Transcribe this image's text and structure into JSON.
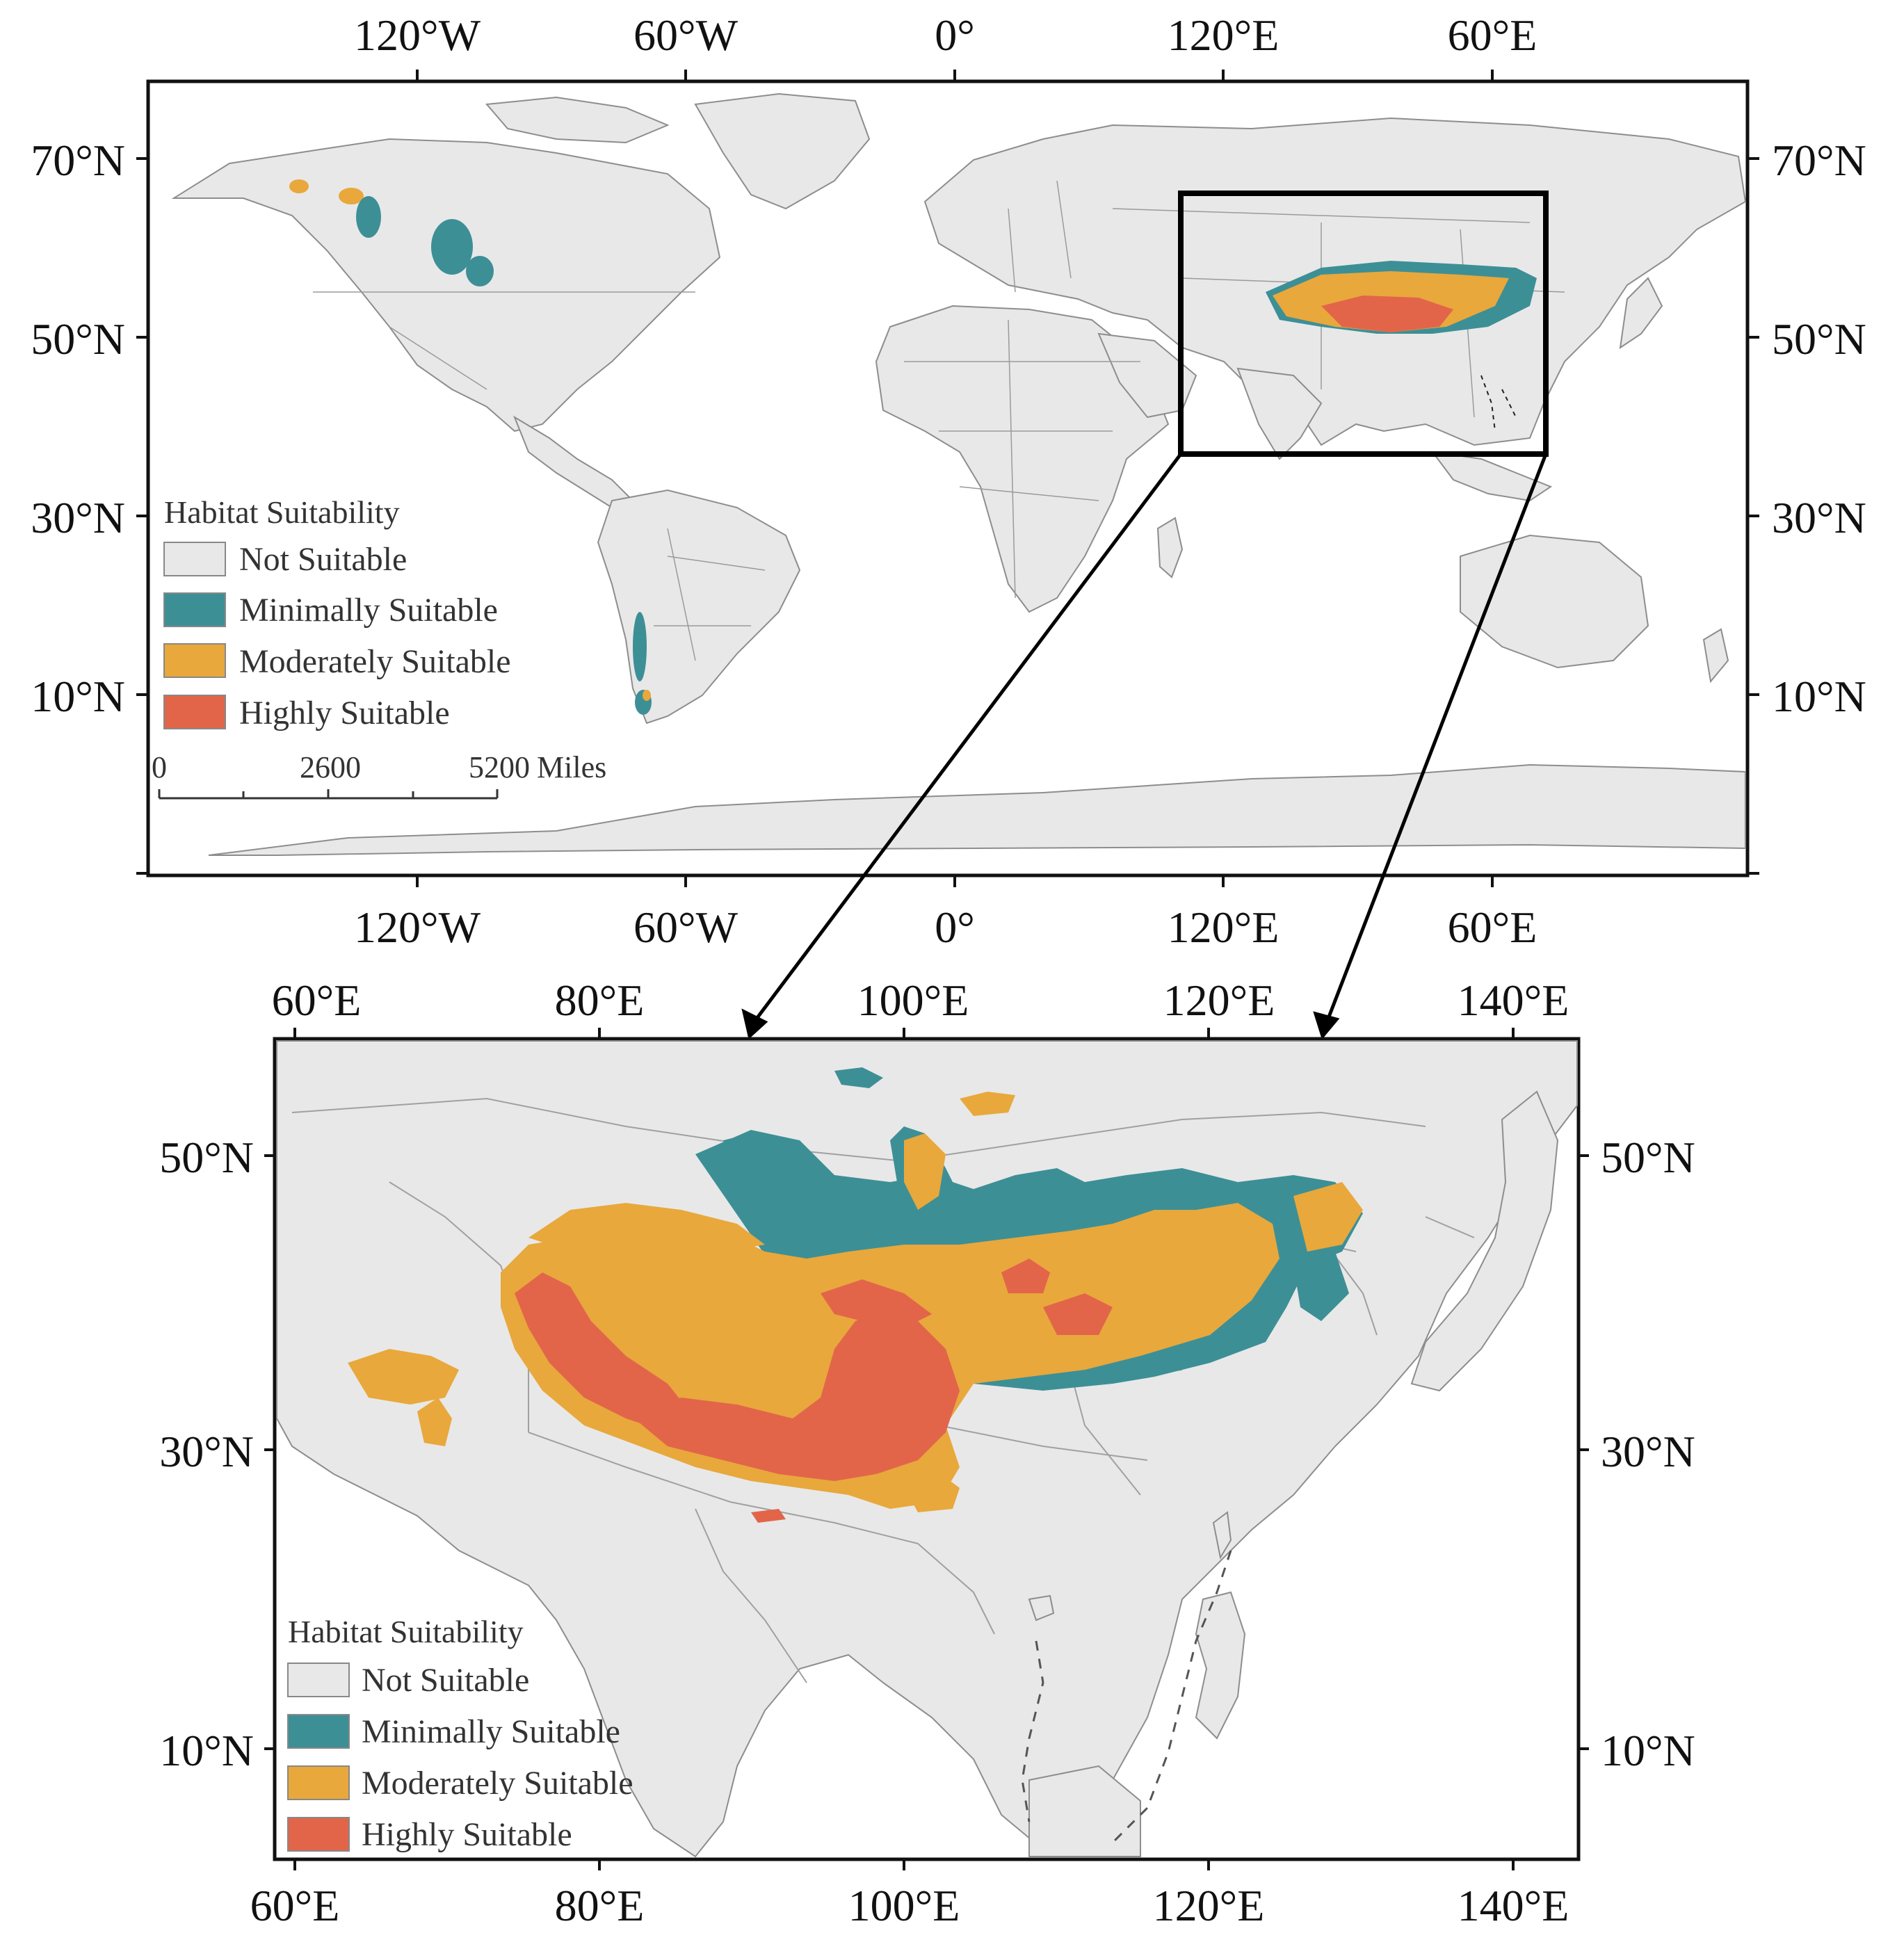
{
  "world_map": {
    "top_lon_labels": [
      "120°W",
      "60°W",
      "0°",
      "120°E",
      "60°E"
    ],
    "bottom_lon_labels": [
      "120°W",
      "60°W",
      "0°",
      "120°E",
      "60°E"
    ],
    "left_lat_labels": [
      "70°N",
      "50°N",
      "30°N",
      "10°N"
    ],
    "right_lat_labels": [
      "70°N",
      "50°N",
      "30°N",
      "10°N"
    ],
    "legend": {
      "title": "Habitat Suitability",
      "items": [
        {
          "label": "Not Suitable",
          "color": "#e8e8e8"
        },
        {
          "label": "Minimally Suitable",
          "color": "#3d8f96"
        },
        {
          "label": "Moderately Suitable",
          "color": "#e8a83c"
        },
        {
          "label": "Highly Suitable",
          "color": "#e2654a"
        }
      ]
    },
    "scale_bar": {
      "labels": [
        "0",
        "2600",
        "5200"
      ],
      "unit": "Miles"
    }
  },
  "inset_map": {
    "top_lon_labels": [
      "60°E",
      "80°E",
      "100°E",
      "120°E",
      "140°E"
    ],
    "bottom_lon_labels": [
      "60°E",
      "80°E",
      "100°E",
      "120°E",
      "140°E"
    ],
    "left_lat_labels": [
      "50°N",
      "30°N",
      "10°N"
    ],
    "right_lat_labels": [
      "50°N",
      "30°N",
      "10°N"
    ],
    "legend": {
      "title": "Habitat Suitability",
      "items": [
        {
          "label": "Not Suitable",
          "color": "#e8e8e8"
        },
        {
          "label": "Minimally Suitable",
          "color": "#3d8f96"
        },
        {
          "label": "Moderately Suitable",
          "color": "#e8a83c"
        },
        {
          "label": "Highly Suitable",
          "color": "#e2654a"
        }
      ]
    }
  },
  "colors": {
    "land": "#e8e8e8",
    "border": "#9a9a9a",
    "minimal": "#3d8f96",
    "moderate": "#e8a83c",
    "high": "#e2654a"
  }
}
